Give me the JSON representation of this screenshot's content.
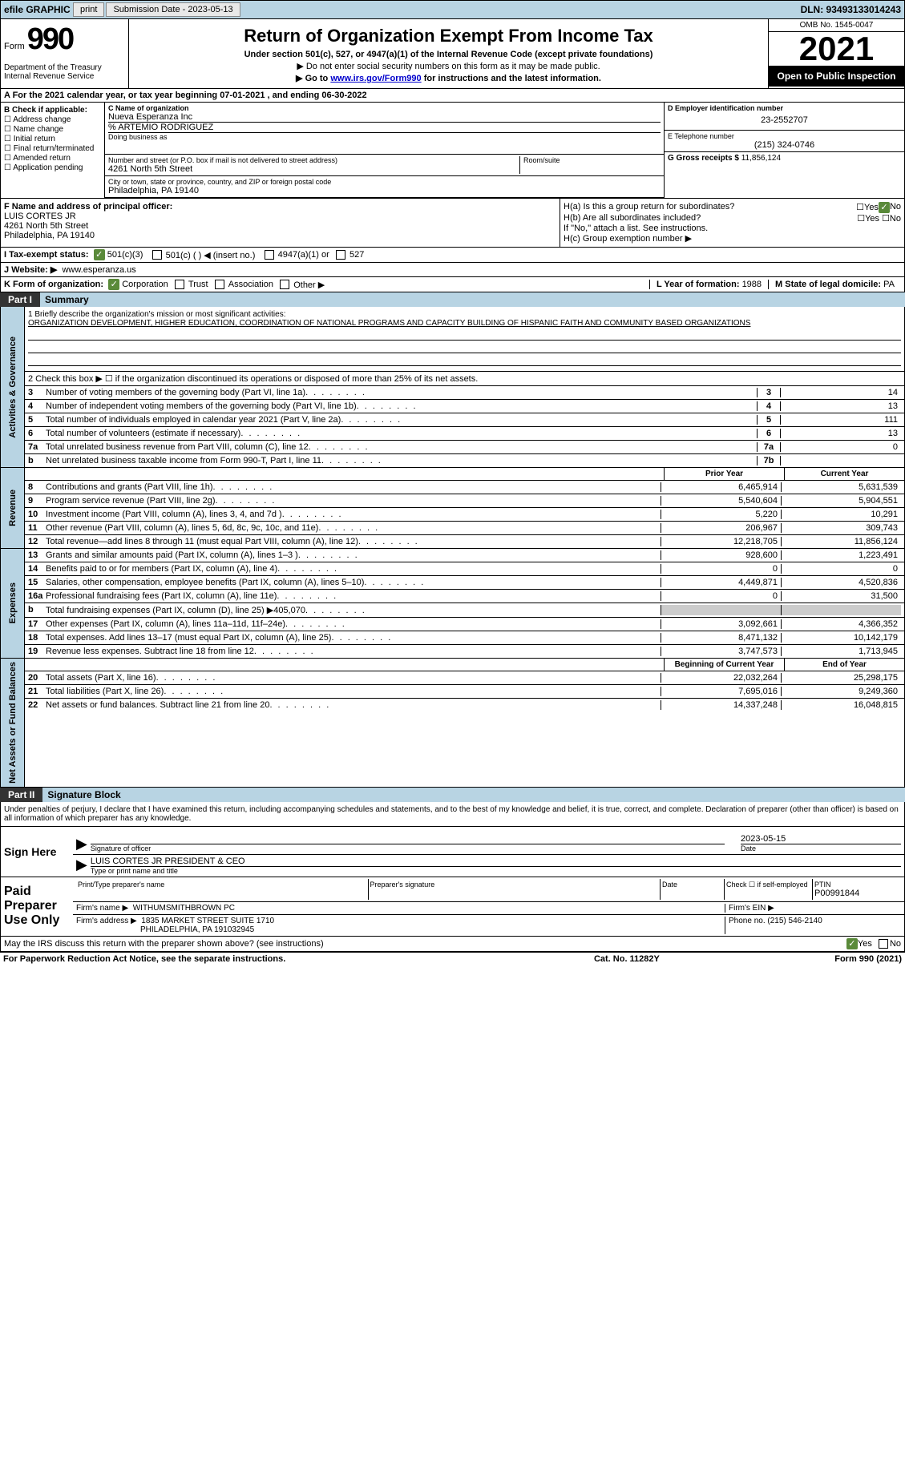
{
  "topbar": {
    "efile_label": "efile GRAPHIC",
    "print_label": "print",
    "submission_label": "Submission Date - 2023-05-13",
    "dln_label": "DLN: 93493133014243"
  },
  "header": {
    "form_label": "Form",
    "form_num": "990",
    "dept": "Department of the Treasury Internal Revenue Service",
    "title": "Return of Organization Exempt From Income Tax",
    "subtitle": "Under section 501(c), 527, or 4947(a)(1) of the Internal Revenue Code (except private foundations)",
    "instruction1": "▶ Do not enter social security numbers on this form as it may be made public.",
    "instruction2_pre": "▶ Go to ",
    "instruction2_link": "www.irs.gov/Form990",
    "instruction2_post": " for instructions and the latest information.",
    "omb": "OMB No. 1545-0047",
    "year": "2021",
    "inspection": "Open to Public Inspection"
  },
  "section_a": "A For the 2021 calendar year, or tax year beginning 07-01-2021    , and ending 06-30-2022",
  "section_b": {
    "label": "B Check if applicable:",
    "opts": [
      "☐ Address change",
      "☐ Name change",
      "☐ Initial return",
      "☐ Final return/terminated",
      "☐ Amended return",
      "☐ Application pending"
    ]
  },
  "section_c": {
    "name_label": "C Name of organization",
    "name": "Nueva Esperanza Inc",
    "care_of": "% ARTEMIO RODRIGUEZ",
    "dba_label": "Doing business as",
    "addr_label": "Number and street (or P.O. box if mail is not delivered to street address)",
    "room_label": "Room/suite",
    "addr": "4261 North 5th Street",
    "city_label": "City or town, state or province, country, and ZIP or foreign postal code",
    "city": "Philadelphia, PA  19140"
  },
  "section_d": {
    "label": "D Employer identification number",
    "ein": "23-2552707"
  },
  "section_e": {
    "label": "E Telephone number",
    "phone": "(215) 324-0746"
  },
  "section_g": {
    "label": "G Gross receipts $",
    "amount": "11,856,124"
  },
  "section_f": {
    "label": "F Name and address of principal officer:",
    "name": "LUIS CORTES JR",
    "addr1": "4261 North 5th Street",
    "addr2": "Philadelphia, PA  19140"
  },
  "section_h": {
    "ha": "H(a)  Is this a group return for subordinates?",
    "hb": "H(b)  Are all subordinates included?",
    "hb_note": "If \"No,\" attach a list. See instructions.",
    "hc": "H(c)  Group exemption number ▶"
  },
  "section_i": {
    "label": "I   Tax-exempt status:",
    "opt1": "501(c)(3)",
    "opt2": "501(c) (  ) ◀ (insert no.)",
    "opt3": "4947(a)(1) or",
    "opt4": "527"
  },
  "section_j": {
    "label": "J   Website: ▶",
    "url": "www.esperanza.us"
  },
  "section_k": "K Form of organization:",
  "section_k_opts": [
    "Corporation",
    "Trust",
    "Association",
    "Other ▶"
  ],
  "section_l": {
    "label": "L Year of formation:",
    "val": "1988"
  },
  "section_m": {
    "label": "M State of legal domicile:",
    "val": "PA"
  },
  "part1": {
    "num": "Part I",
    "title": "Summary"
  },
  "mission": {
    "label": "1   Briefly describe the organization's mission or most significant activities:",
    "text": "ORGANIZATION DEVELOPMENT, HIGHER EDUCATION, COORDINATION OF NATIONAL PROGRAMS AND CAPACITY BUILDING OF HISPANIC FAITH AND COMMUNITY BASED ORGANIZATIONS"
  },
  "line2": "2   Check this box ▶ ☐  if the organization discontinued its operations or disposed of more than 25% of its net assets.",
  "governance_label": "Activities & Governance",
  "revenue_label": "Revenue",
  "expenses_label": "Expenses",
  "netassets_label": "Net Assets or Fund Balances",
  "gov_lines": [
    {
      "n": "3",
      "t": "Number of voting members of the governing body (Part VI, line 1a)",
      "b": "3",
      "v": "14"
    },
    {
      "n": "4",
      "t": "Number of independent voting members of the governing body (Part VI, line 1b)",
      "b": "4",
      "v": "13"
    },
    {
      "n": "5",
      "t": "Total number of individuals employed in calendar year 2021 (Part V, line 2a)",
      "b": "5",
      "v": "111"
    },
    {
      "n": "6",
      "t": "Total number of volunteers (estimate if necessary)",
      "b": "6",
      "v": "13"
    },
    {
      "n": "7a",
      "t": "Total unrelated business revenue from Part VIII, column (C), line 12",
      "b": "7a",
      "v": "0"
    },
    {
      "n": "b",
      "t": "Net unrelated business taxable income from Form 990-T, Part I, line 11",
      "b": "7b",
      "v": ""
    }
  ],
  "col_headers": {
    "prior": "Prior Year",
    "current": "Current Year"
  },
  "rev_lines": [
    {
      "n": "8",
      "t": "Contributions and grants (Part VIII, line 1h)",
      "p": "6,465,914",
      "c": "5,631,539"
    },
    {
      "n": "9",
      "t": "Program service revenue (Part VIII, line 2g)",
      "p": "5,540,604",
      "c": "5,904,551"
    },
    {
      "n": "10",
      "t": "Investment income (Part VIII, column (A), lines 3, 4, and 7d )",
      "p": "5,220",
      "c": "10,291"
    },
    {
      "n": "11",
      "t": "Other revenue (Part VIII, column (A), lines 5, 6d, 8c, 9c, 10c, and 11e)",
      "p": "206,967",
      "c": "309,743"
    },
    {
      "n": "12",
      "t": "Total revenue—add lines 8 through 11 (must equal Part VIII, column (A), line 12)",
      "p": "12,218,705",
      "c": "11,856,124"
    }
  ],
  "exp_lines": [
    {
      "n": "13",
      "t": "Grants and similar amounts paid (Part IX, column (A), lines 1–3 )",
      "p": "928,600",
      "c": "1,223,491"
    },
    {
      "n": "14",
      "t": "Benefits paid to or for members (Part IX, column (A), line 4)",
      "p": "0",
      "c": "0"
    },
    {
      "n": "15",
      "t": "Salaries, other compensation, employee benefits (Part IX, column (A), lines 5–10)",
      "p": "4,449,871",
      "c": "4,520,836"
    },
    {
      "n": "16a",
      "t": "Professional fundraising fees (Part IX, column (A), line 11e)",
      "p": "0",
      "c": "31,500"
    },
    {
      "n": "b",
      "t": "Total fundraising expenses (Part IX, column (D), line 25) ▶405,070",
      "p": "gray",
      "c": "gray"
    },
    {
      "n": "17",
      "t": "Other expenses (Part IX, column (A), lines 11a–11d, 11f–24e)",
      "p": "3,092,661",
      "c": "4,366,352"
    },
    {
      "n": "18",
      "t": "Total expenses. Add lines 13–17 (must equal Part IX, column (A), line 25)",
      "p": "8,471,132",
      "c": "10,142,179"
    },
    {
      "n": "19",
      "t": "Revenue less expenses. Subtract line 18 from line 12",
      "p": "3,747,573",
      "c": "1,713,945"
    }
  ],
  "net_headers": {
    "begin": "Beginning of Current Year",
    "end": "End of Year"
  },
  "net_lines": [
    {
      "n": "20",
      "t": "Total assets (Part X, line 16)",
      "p": "22,032,264",
      "c": "25,298,175"
    },
    {
      "n": "21",
      "t": "Total liabilities (Part X, line 26)",
      "p": "7,695,016",
      "c": "9,249,360"
    },
    {
      "n": "22",
      "t": "Net assets or fund balances. Subtract line 21 from line 20",
      "p": "14,337,248",
      "c": "16,048,815"
    }
  ],
  "part2": {
    "num": "Part II",
    "title": "Signature Block"
  },
  "penalty": "Under penalties of perjury, I declare that I have examined this return, including accompanying schedules and statements, and to the best of my knowledge and belief, it is true, correct, and complete. Declaration of preparer (other than officer) is based on all information of which preparer has any knowledge.",
  "sign_here": "Sign Here",
  "sig_date": "2023-05-15",
  "sig_officer_label": "Signature of officer",
  "sig_date_label": "Date",
  "sig_name": "LUIS CORTES JR  PRESIDENT & CEO",
  "sig_name_label": "Type or print name and title",
  "paid_prep": "Paid Preparer Use Only",
  "prep_name_label": "Print/Type preparer's name",
  "prep_sig_label": "Preparer's signature",
  "prep_date_label": "Date",
  "prep_check_label": "Check ☐ if self-employed",
  "prep_ptin_label": "PTIN",
  "prep_ptin": "P00991844",
  "firm_name_label": "Firm's name     ▶",
  "firm_name": "WITHUMSMITHBROWN PC",
  "firm_ein_label": "Firm's EIN ▶",
  "firm_addr_label": "Firm's address ▶",
  "firm_addr": "1835 MARKET STREET SUITE 1710",
  "firm_city": "PHILADELPHIA, PA  191032945",
  "firm_phone_label": "Phone no.",
  "firm_phone": "(215) 546-2140",
  "discuss": "May the IRS discuss this return with the preparer shown above? (see instructions)",
  "footer_left": "For Paperwork Reduction Act Notice, see the separate instructions.",
  "footer_mid": "Cat. No. 11282Y",
  "footer_right": "Form 990 (2021)"
}
